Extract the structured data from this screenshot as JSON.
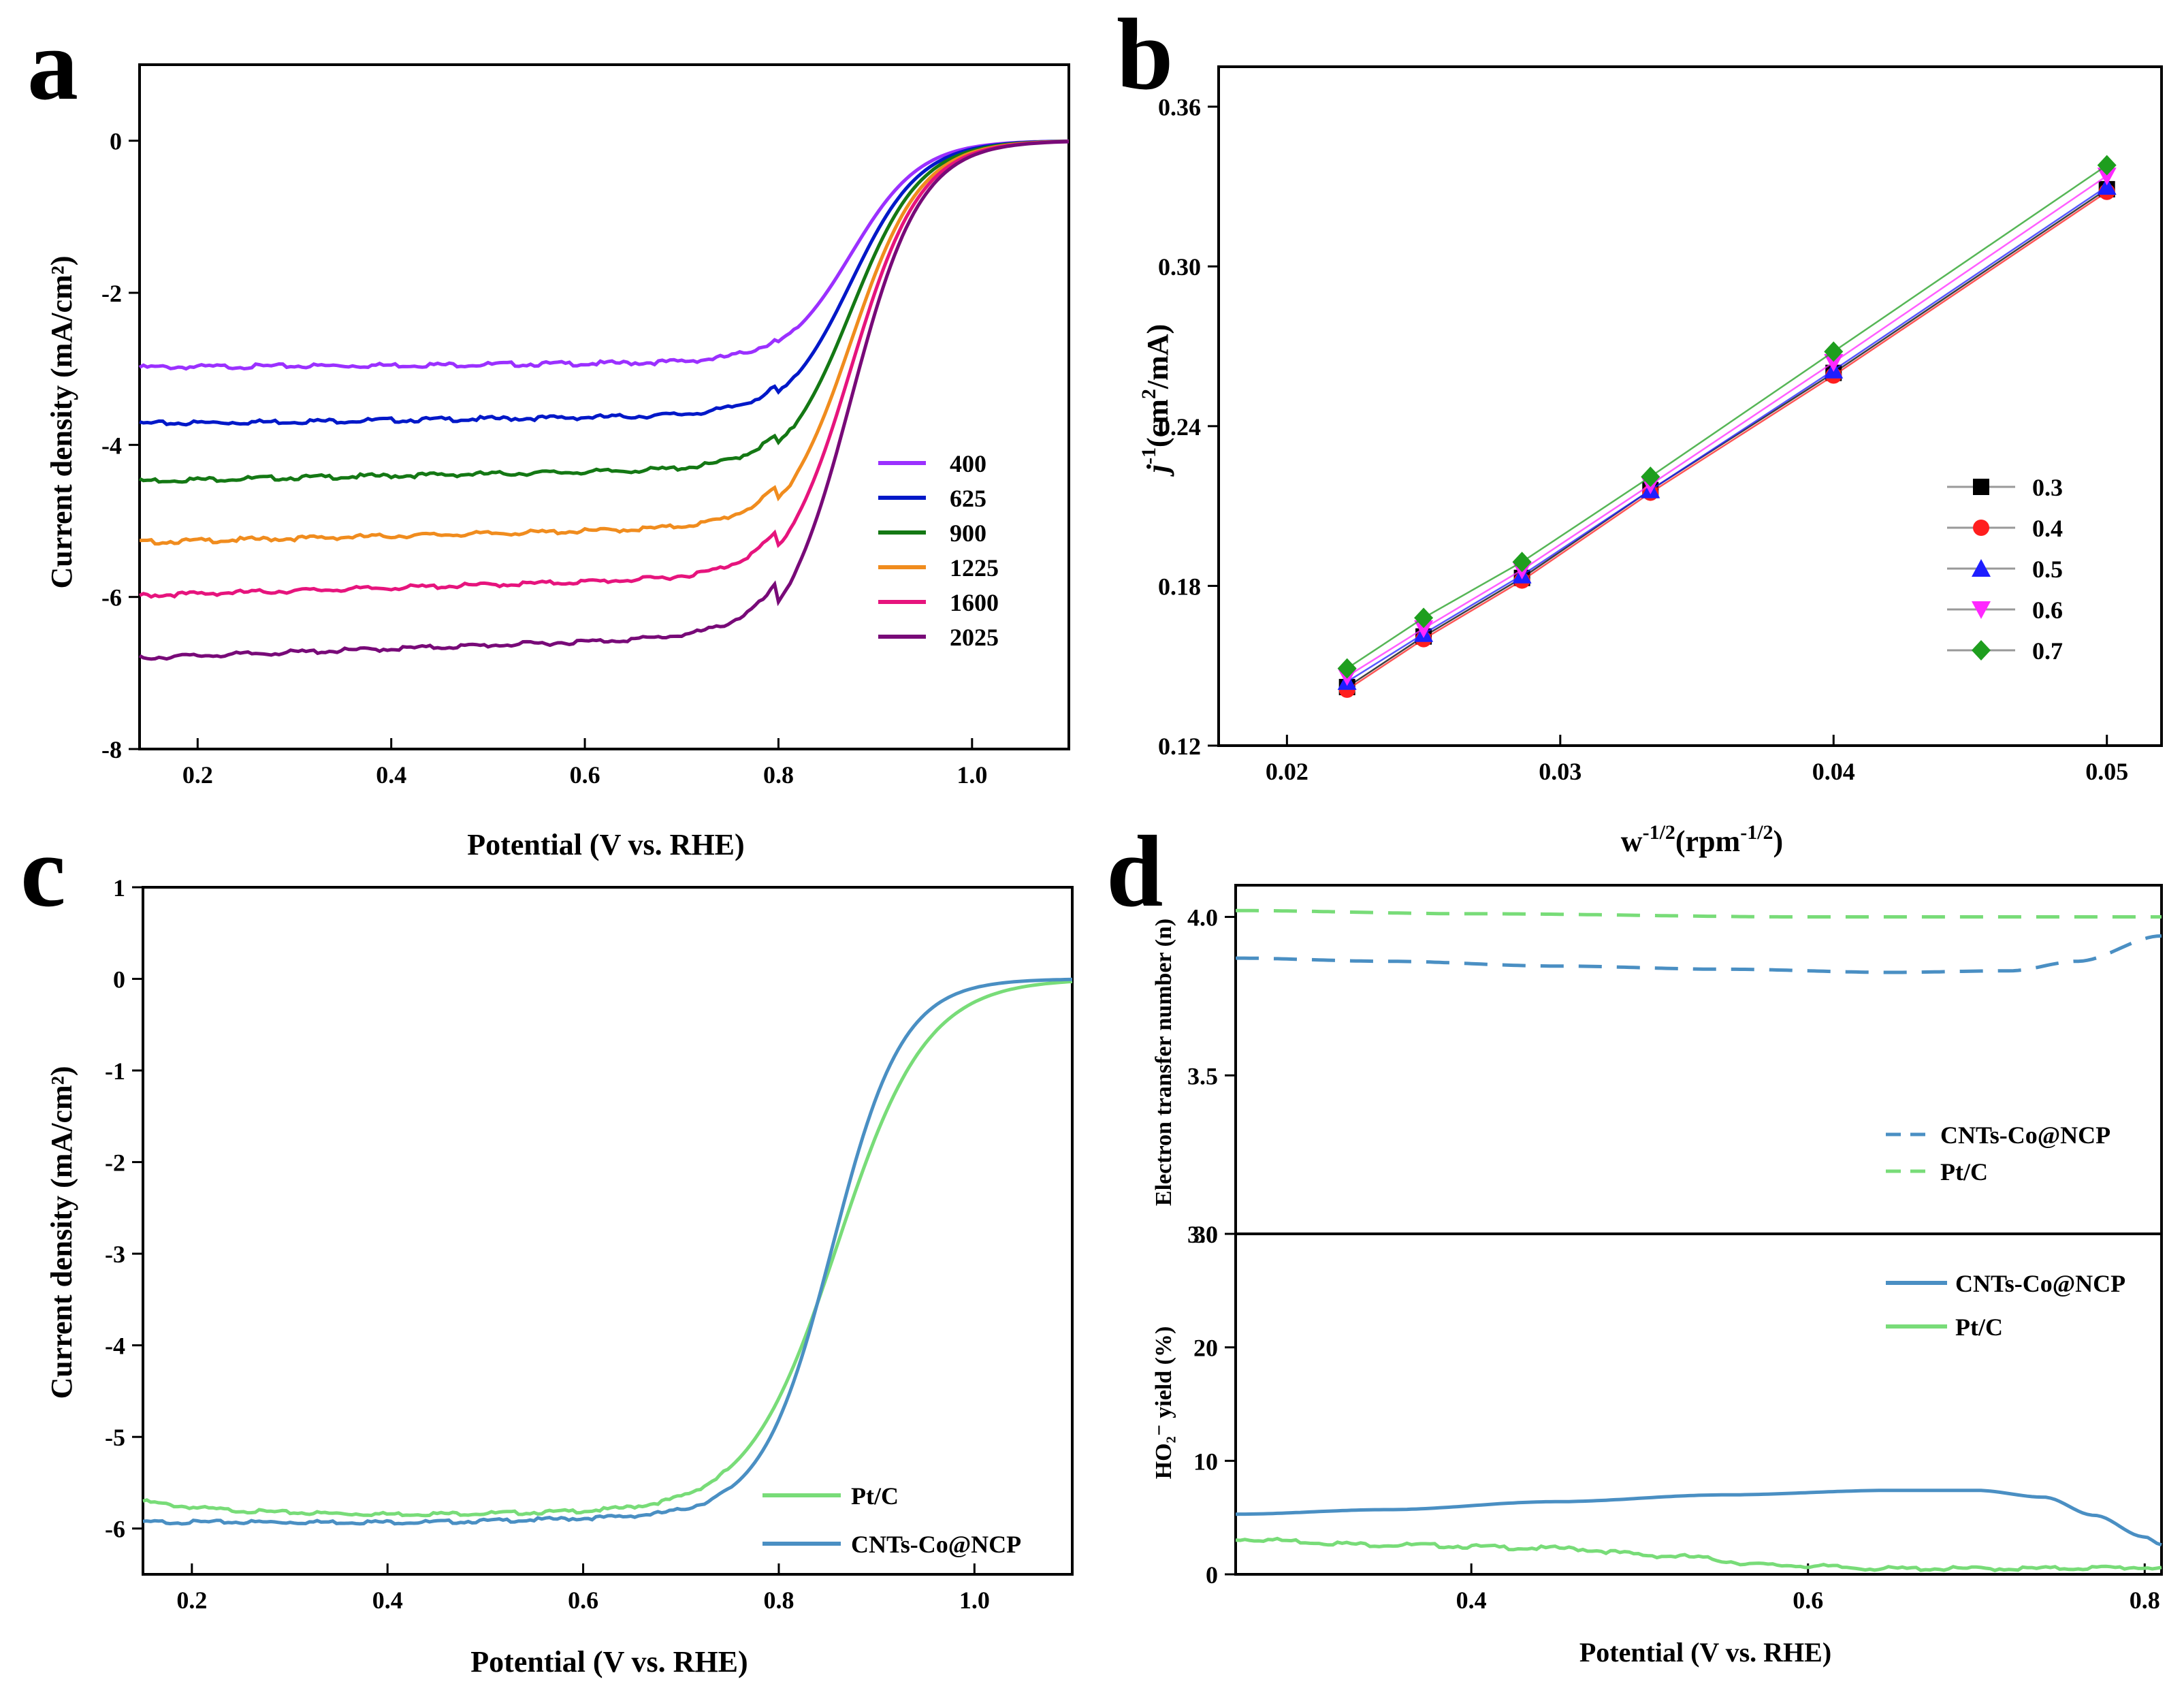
{
  "chart_data": [
    {
      "id": "a",
      "type": "line",
      "panel_letter": "a",
      "xlabel": "Potential (V vs. RHE)",
      "ylabel": "Current density (mA/cm²)",
      "xlim": [
        0.14,
        1.1
      ],
      "ylim": [
        -8,
        1
      ],
      "xticks": [
        "0.2",
        "0.4",
        "0.6",
        "0.8",
        "1.0"
      ],
      "yticks": [
        "0",
        "-2",
        "-4",
        "-6",
        "-8"
      ],
      "legend_position": "right",
      "series": [
        {
          "name": "400",
          "color": "#9b30ff",
          "plateau": -2.98,
          "onset": 0.76,
          "slope": 1.3
        },
        {
          "name": "625",
          "color": "#0018c8",
          "plateau": -3.72,
          "onset": 0.78,
          "slope": 1.4
        },
        {
          "name": "900",
          "color": "#147814",
          "plateau": -4.47,
          "onset": 0.79,
          "slope": 1.5
        },
        {
          "name": "1225",
          "color": "#f08c1e",
          "plateau": -5.28,
          "onset": 0.79,
          "slope": 1.6
        },
        {
          "name": "1600",
          "color": "#e6147d",
          "plateau": -5.98,
          "onset": 0.79,
          "slope": 1.8
        },
        {
          "name": "2025",
          "color": "#780a78",
          "plateau": -6.8,
          "onset": 0.78,
          "slope": 2.0
        }
      ]
    },
    {
      "id": "b",
      "type": "line",
      "panel_letter": "b",
      "xlabel_base": "w",
      "xlabel_sup": "-1/2",
      "xlabel_paren": "(rpm",
      "xlabel_paren_sup": "-1/2",
      "xlabel_end": ")",
      "ylabel_base": "j",
      "ylabel_sup": "-1",
      "ylabel_unit": "(cm",
      "ylabel_unit_sup": "2",
      "ylabel_end": "/mA)",
      "xlim": [
        0.0175,
        0.052
      ],
      "ylim": [
        0.12,
        0.375
      ],
      "xticks": [
        "0.02",
        "0.03",
        "0.04",
        "0.05"
      ],
      "yticks": [
        "0.12",
        "0.18",
        "0.24",
        "0.30",
        "0.36"
      ],
      "x": [
        0.0222,
        0.025,
        0.0286,
        0.0333,
        0.04,
        0.05
      ],
      "legend_position": "right",
      "series": [
        {
          "name": "0.3",
          "color": "#000000",
          "marker": "square",
          "values": [
            0.142,
            0.161,
            0.183,
            0.216,
            0.26,
            0.329
          ]
        },
        {
          "name": "0.4",
          "color": "#ff1e1e",
          "marker": "circle",
          "values": [
            0.141,
            0.16,
            0.182,
            0.215,
            0.259,
            0.328
          ]
        },
        {
          "name": "0.5",
          "color": "#1e1eff",
          "marker": "triangle-up",
          "values": [
            0.144,
            0.162,
            0.184,
            0.216,
            0.261,
            0.33
          ]
        },
        {
          "name": "0.6",
          "color": "#ff28ff",
          "marker": "triangle-down",
          "values": [
            0.146,
            0.164,
            0.186,
            0.218,
            0.264,
            0.334
          ]
        },
        {
          "name": "0.7",
          "color": "#1e9e1e",
          "marker": "diamond",
          "values": [
            0.149,
            0.168,
            0.189,
            0.221,
            0.268,
            0.338
          ]
        }
      ]
    },
    {
      "id": "c",
      "type": "line",
      "panel_letter": "c",
      "xlabel": "Potential (V vs. RHE)",
      "ylabel": "Current density (mA/cm²)",
      "xlim": [
        0.15,
        1.1
      ],
      "ylim": [
        -6.5,
        1
      ],
      "xticks": [
        "0.2",
        "0.4",
        "0.6",
        "0.8",
        "1.0"
      ],
      "yticks": [
        "1",
        "0",
        "-1",
        "-2",
        "-3",
        "-4",
        "-5",
        "-6"
      ],
      "legend_position": "bottom-right",
      "series": [
        {
          "name": "Pt/C",
          "color": "#78dc78",
          "plateau": -5.85,
          "half_wave": 0.86,
          "k": 22
        },
        {
          "name": "CNTs-Co@NCP",
          "color": "#4a8fc3",
          "plateau": -5.95,
          "half_wave": 0.855,
          "k": 28
        }
      ]
    },
    {
      "id": "d",
      "type": "line",
      "panel_letter": "d",
      "xlabel": "Potential (V vs. RHE)",
      "xlim": [
        0.26,
        0.81
      ],
      "xticks": [
        "0.4",
        "0.6",
        "0.8"
      ],
      "top": {
        "ylabel": "Electron transfer number (n)",
        "ylim": [
          3.0,
          4.1
        ],
        "yticks": [
          "3.0",
          "3.5",
          "4.0"
        ],
        "legend_position": "right",
        "series": [
          {
            "name": "CNTs-Co@NCP",
            "color": "#4a8fc3",
            "dash": true,
            "x": [
              0.26,
              0.35,
              0.45,
              0.55,
              0.65,
              0.72,
              0.76,
              0.81
            ],
            "values": [
              3.87,
              3.86,
              3.845,
              3.835,
              3.825,
              3.83,
              3.86,
              3.94
            ]
          },
          {
            "name": "Pt/C",
            "color": "#78dc78",
            "dash": true,
            "x": [
              0.26,
              0.4,
              0.6,
              0.81
            ],
            "values": [
              4.02,
              4.01,
              4.0,
              4.0
            ]
          }
        ]
      },
      "bottom": {
        "ylabel": "HO₂⁻ yield (%)",
        "ylim": [
          0,
          30
        ],
        "yticks": [
          "0",
          "10",
          "20",
          "30"
        ],
        "legend_position": "top-right",
        "series": [
          {
            "name": "CNTs-Co@NCP",
            "color": "#4a8fc3",
            "x": [
              0.26,
              0.35,
              0.45,
              0.55,
              0.65,
              0.7,
              0.74,
              0.77,
              0.8,
              0.81
            ],
            "values": [
              5.3,
              5.7,
              6.4,
              7.0,
              7.4,
              7.4,
              6.8,
              5.2,
              3.3,
              2.6
            ]
          },
          {
            "name": "Pt/C",
            "color": "#78dc78",
            "x": [
              0.26,
              0.35,
              0.45,
              0.52,
              0.58,
              0.65,
              0.72,
              0.8
            ],
            "values": [
              3.1,
              2.6,
              2.3,
              1.6,
              0.8,
              0.5,
              0.5,
              0.6
            ]
          }
        ]
      }
    }
  ]
}
